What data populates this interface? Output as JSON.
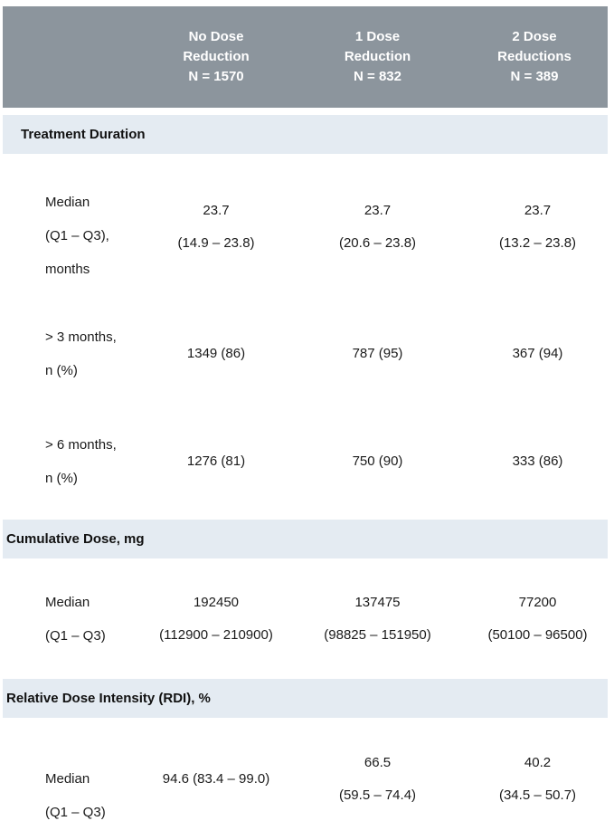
{
  "colors": {
    "header_bg": "#8C959D",
    "section_band_bg": "#E4EBF2",
    "header_text": "#FFFFFF",
    "body_text": "#1A1A1A"
  },
  "header": {
    "col1": {
      "l1": "No Dose",
      "l2": "Reduction",
      "l3": "N = 1570"
    },
    "col2": {
      "l1": "1 Dose",
      "l2": "Reduction",
      "l3": "N = 832"
    },
    "col3": {
      "l1": "2 Dose",
      "l2": "Reductions",
      "l3": "N = 389"
    }
  },
  "sections": {
    "treatment_duration": {
      "title": "Treatment Duration",
      "median_row": {
        "label_l1": "Median",
        "label_l2": "(Q1 – Q3),",
        "label_l3": "months",
        "col1_median": "23.7",
        "col1_range": "(14.9 – 23.8)",
        "col2_median": "23.7",
        "col2_range": "(20.6 – 23.8)",
        "col3_median": "23.7",
        "col3_range": "(13.2 – 23.8)"
      },
      "gt3_row": {
        "label_l1": "> 3 months,",
        "label_l2": "n (%)",
        "col1": "1349 (86)",
        "col2": "787 (95)",
        "col3": "367 (94)"
      },
      "gt6_row": {
        "label_l1": "> 6 months,",
        "label_l2": "n (%)",
        "col1": "1276 (81)",
        "col2": "750 (90)",
        "col3": "333 (86)"
      }
    },
    "cumulative_dose": {
      "title": "Cumulative Dose, mg",
      "median_row": {
        "label_l1": "Median",
        "label_l2": "(Q1 – Q3)",
        "col1_median": "192450",
        "col1_range": "(112900 – 210900)",
        "col2_median": "137475",
        "col2_range": "(98825 – 151950)",
        "col3_median": "77200",
        "col3_range": "(50100 – 96500)"
      }
    },
    "rdi": {
      "title": "Relative Dose Intensity (RDI), %",
      "median_row": {
        "label_l1": "Median",
        "label_l2": "(Q1 – Q3)",
        "col1_combined": "94.6 (83.4 – 99.0)",
        "col2_median": "66.5",
        "col2_range": "(59.5 – 74.4)",
        "col3_median": "40.2",
        "col3_range": "(34.5 – 50.7)"
      }
    }
  }
}
